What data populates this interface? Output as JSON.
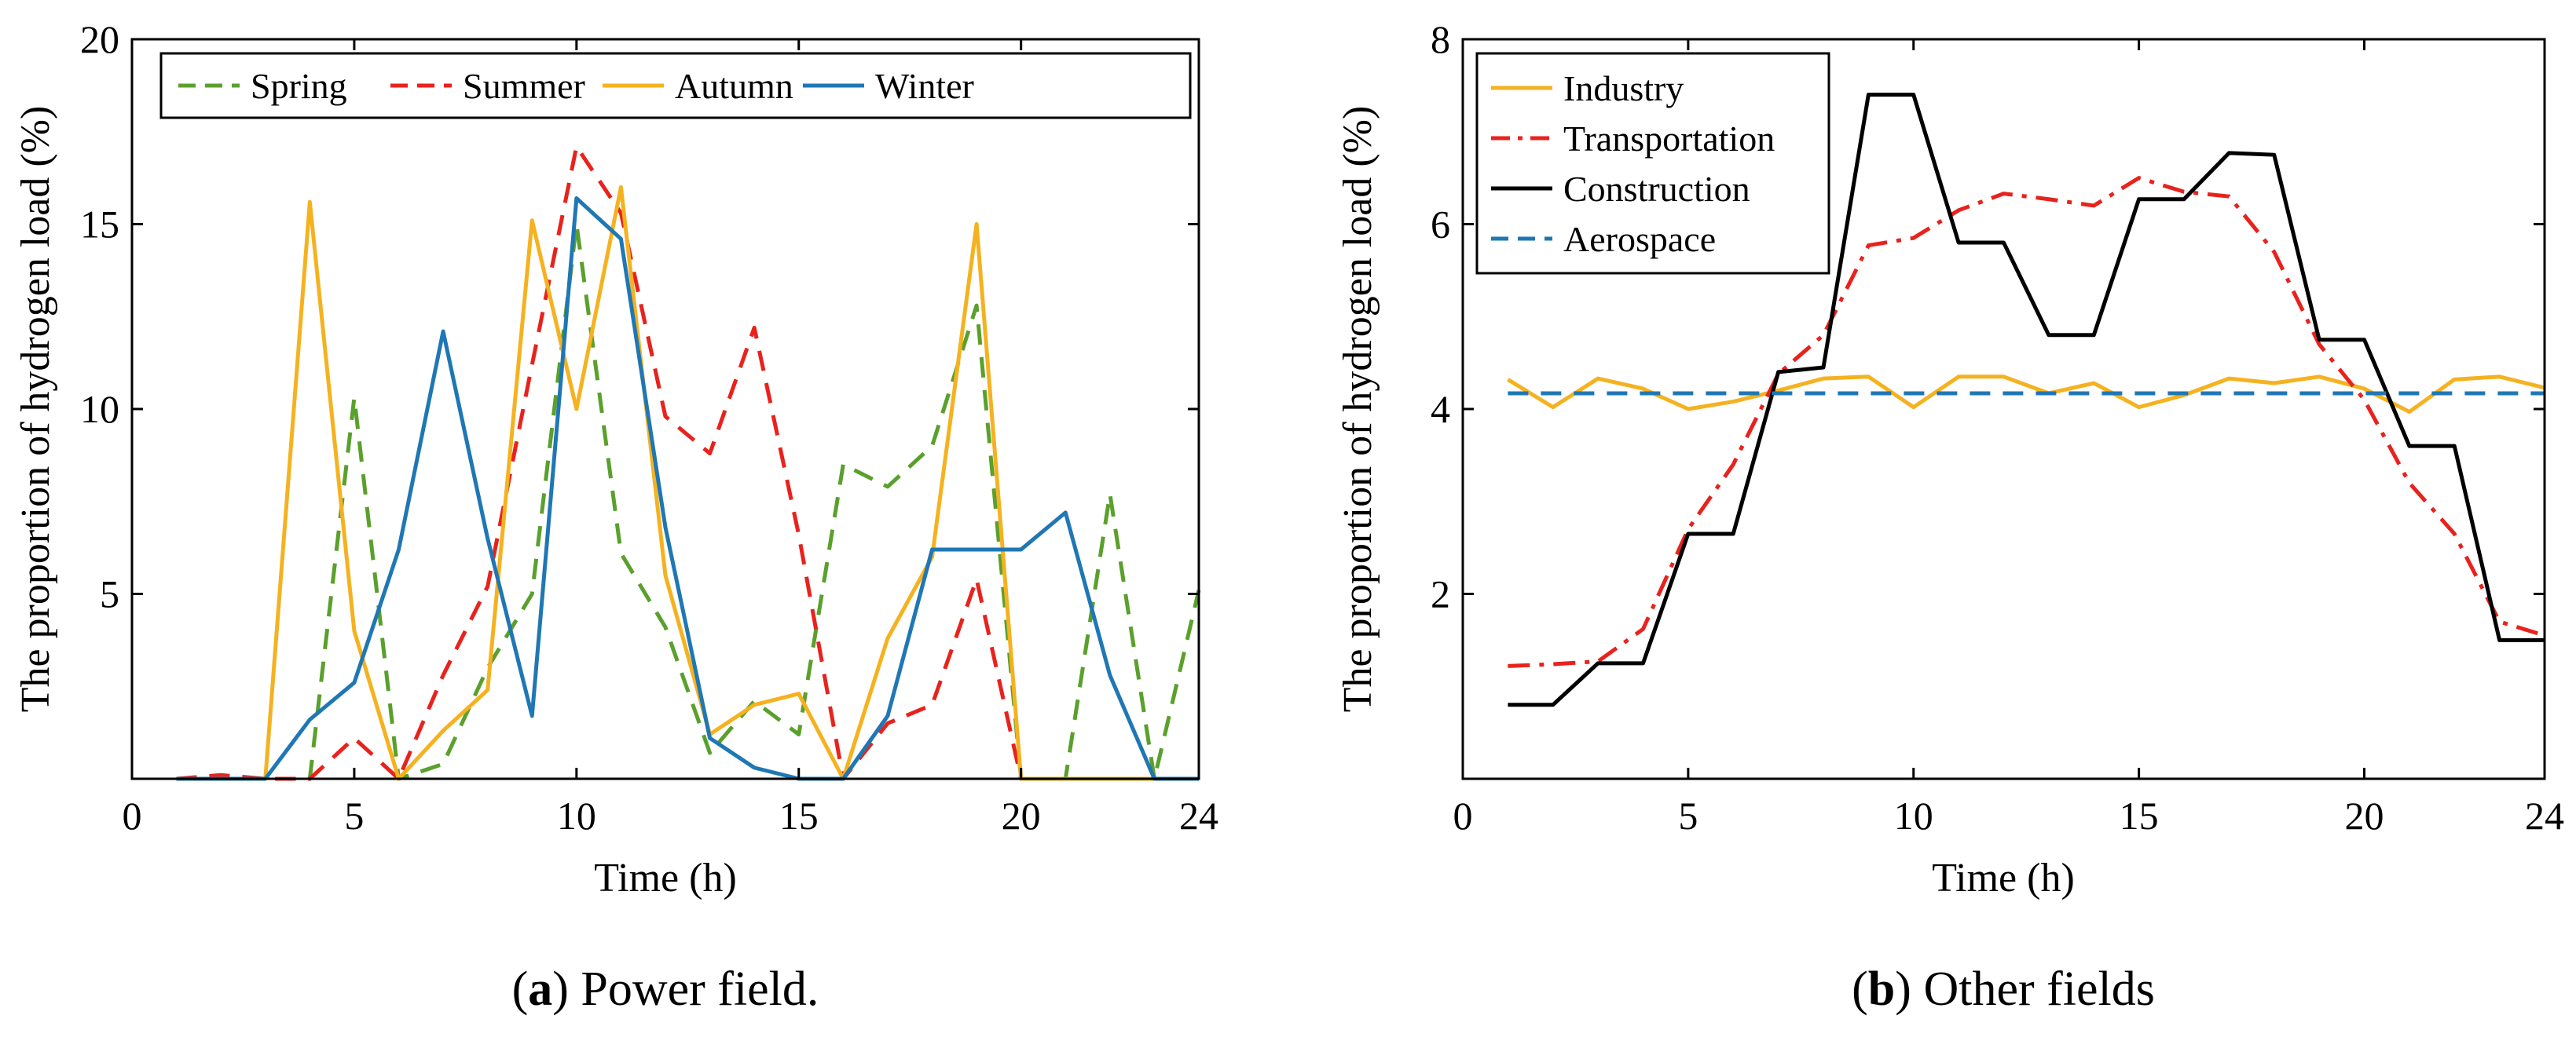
{
  "chart_data": [
    {
      "type": "line",
      "panel": "a",
      "caption_bold": "a",
      "caption_text": "Power field.",
      "xlabel": "Time (h)",
      "ylabel": "The proportion of hydrogen load (%)",
      "xlim": [
        0,
        24
      ],
      "ylim": [
        0,
        20
      ],
      "xticks": [
        0,
        5,
        10,
        15,
        20,
        24
      ],
      "yticks": [
        5,
        10,
        15,
        20
      ],
      "legend_position": "top",
      "series": [
        {
          "name": "Spring",
          "color": "#5aa02c",
          "dash": "dashed",
          "x": [
            1,
            2,
            3,
            4,
            5,
            6,
            7,
            8,
            9,
            10,
            11,
            12,
            13,
            14,
            15,
            16,
            17,
            18,
            19,
            20,
            21,
            22,
            23,
            24
          ],
          "y": [
            0,
            0,
            0,
            0,
            10.3,
            0,
            0.4,
            3,
            5,
            15,
            6.1,
            4.1,
            0.7,
            2.1,
            1.2,
            8.5,
            7.9,
            9,
            12.8,
            0,
            0,
            7.7,
            0,
            5.1
          ]
        },
        {
          "name": "Summer",
          "color": "#e8221d",
          "dash": "dashed",
          "x": [
            1,
            2,
            3,
            4,
            5,
            6,
            7,
            8,
            9,
            10,
            11,
            12,
            13,
            14,
            15,
            16,
            17,
            18,
            19,
            20,
            21,
            22,
            23,
            24
          ],
          "y": [
            0,
            0.1,
            0,
            0,
            1.1,
            0,
            2.8,
            5.2,
            11.2,
            17.1,
            15.3,
            9.8,
            8.8,
            12.2,
            6.6,
            0,
            1.5,
            2,
            5.4,
            0,
            0,
            0,
            0,
            0
          ]
        },
        {
          "name": "Autumn",
          "color": "#f5b220",
          "dash": "solid",
          "x": [
            1,
            2,
            3,
            4,
            5,
            6,
            7,
            8,
            9,
            10,
            11,
            12,
            13,
            14,
            15,
            16,
            17,
            18,
            19,
            20,
            21,
            22,
            23,
            24
          ],
          "y": [
            0,
            0,
            0,
            15.6,
            4,
            0,
            1.3,
            2.4,
            15.1,
            10,
            16,
            5.5,
            1.2,
            2,
            2.3,
            0,
            3.8,
            6,
            15,
            0,
            0,
            0,
            0,
            0
          ]
        },
        {
          "name": "Winter",
          "color": "#1f77b4",
          "dash": "solid",
          "x": [
            1,
            2,
            3,
            4,
            5,
            6,
            7,
            8,
            9,
            10,
            11,
            12,
            13,
            14,
            15,
            16,
            17,
            18,
            19,
            20,
            21,
            22,
            23,
            24
          ],
          "y": [
            0,
            0,
            0,
            1.6,
            2.6,
            6.2,
            12.1,
            6.5,
            1.7,
            15.7,
            14.6,
            6.8,
            1.1,
            0.3,
            0,
            0,
            1.7,
            6.2,
            6.2,
            6.2,
            7.2,
            2.8,
            0,
            0
          ]
        }
      ]
    },
    {
      "type": "line",
      "panel": "b",
      "caption_bold": "b",
      "caption_text": "Other fields",
      "xlabel": "Time (h)",
      "ylabel": "The proportion of hydrogen load (%)",
      "xlim": [
        0,
        24
      ],
      "ylim": [
        0,
        8
      ],
      "xticks": [
        0,
        5,
        10,
        15,
        20,
        24
      ],
      "yticks": [
        2,
        4,
        6,
        8
      ],
      "legend_position": "top-left",
      "series": [
        {
          "name": "Industry",
          "color": "#f5b220",
          "dash": "solid",
          "x": [
            1,
            2,
            3,
            4,
            5,
            6,
            7,
            8,
            9,
            10,
            11,
            12,
            13,
            14,
            15,
            16,
            17,
            18,
            19,
            20,
            21,
            22,
            23,
            24
          ],
          "y": [
            4.32,
            4.02,
            4.33,
            4.22,
            4.0,
            4.08,
            4.2,
            4.33,
            4.35,
            4.02,
            4.35,
            4.35,
            4.17,
            4.28,
            4.02,
            4.15,
            4.33,
            4.28,
            4.35,
            4.22,
            3.97,
            4.32,
            4.35,
            4.23
          ]
        },
        {
          "name": "Transportation",
          "color": "#e8221d",
          "dash": "dashdot",
          "x": [
            1,
            2,
            3,
            4,
            5,
            6,
            7,
            8,
            9,
            10,
            11,
            12,
            13,
            14,
            15,
            16,
            17,
            18,
            19,
            20,
            21,
            22,
            23,
            24
          ],
          "y": [
            1.22,
            1.24,
            1.27,
            1.62,
            2.7,
            3.4,
            4.38,
            4.8,
            5.77,
            5.85,
            6.15,
            6.33,
            6.27,
            6.2,
            6.5,
            6.35,
            6.3,
            5.7,
            4.7,
            4.1,
            3.2,
            2.65,
            1.7,
            1.55
          ]
        },
        {
          "name": "Construction",
          "color": "#000000",
          "dash": "solid",
          "steps": [
            [
              1,
              0.8
            ],
            [
              2,
              0.8
            ],
            [
              3,
              1.25
            ],
            [
              4,
              1.25
            ],
            [
              5,
              2.65
            ],
            [
              6,
              2.65
            ],
            [
              7,
              4.4
            ],
            [
              8,
              4.45
            ],
            [
              9,
              7.4
            ],
            [
              10,
              7.4
            ],
            [
              11,
              5.8
            ],
            [
              12,
              5.8
            ],
            [
              13,
              4.8
            ],
            [
              14,
              4.8
            ],
            [
              15,
              6.27
            ],
            [
              16,
              6.27
            ],
            [
              17,
              6.77
            ],
            [
              18,
              6.75
            ],
            [
              19,
              4.75
            ],
            [
              20,
              4.75
            ],
            [
              21,
              3.6
            ],
            [
              22,
              3.6
            ],
            [
              23,
              1.5
            ],
            [
              24,
              1.5
            ]
          ]
        },
        {
          "name": "Aerospace",
          "color": "#1f77b4",
          "dash": "dashed",
          "x": [
            1,
            24
          ],
          "y": [
            4.17,
            4.17
          ]
        }
      ]
    }
  ]
}
